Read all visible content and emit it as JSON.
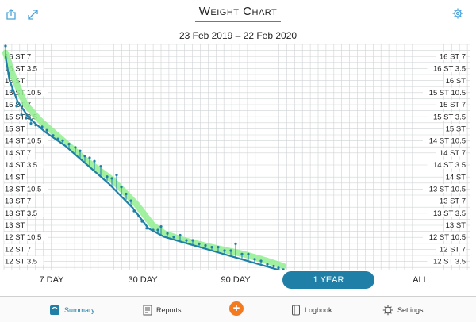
{
  "header": {
    "title": "Weight Chart",
    "date_range": "23 Feb 2019 – 22 Feb 2020",
    "left_icons": [
      "share-icon",
      "expand-icon"
    ],
    "right_icon": "gear-icon",
    "accent_color": "#4aa3d8"
  },
  "chart_data": {
    "type": "line",
    "y_unit": "stones and pounds",
    "y_tick_labels": [
      "16 ST 7",
      "16 ST 3.5",
      "16 ST",
      "15 ST 10.5",
      "15 ST 7",
      "15 ST 3.5",
      "15 ST",
      "14 ST 10.5",
      "14 ST 7",
      "14 ST 3.5",
      "14 ST",
      "13 ST 10.5",
      "13 ST 7",
      "13 ST 3.5",
      "13 ST",
      "12 ST 10.5",
      "12 ST 7",
      "12 ST 3.5"
    ],
    "ylim_lbs": [
      171.5,
      234.5
    ],
    "xlim_days": [
      0,
      365
    ],
    "grid": true,
    "series": [
      {
        "kind": "target-band",
        "color": "#90ee90",
        "x": [
          0,
          10,
          25,
          45,
          70,
          100,
          135,
          165,
          185,
          200,
          225,
          260,
          300,
          330,
          350
        ],
        "y": [
          232,
          225,
          217,
          212,
          207,
          201,
          195,
          188,
          182,
          179.5,
          177.5,
          175.5,
          173.5,
          171.5,
          170
        ]
      },
      {
        "kind": "trend",
        "color": "#1f7fa6",
        "x": [
          0,
          5,
          15,
          30,
          50,
          75,
          100,
          130,
          160,
          180,
          200,
          230,
          260,
          290,
          320,
          350
        ],
        "y": [
          231,
          224,
          218,
          213,
          209,
          205,
          200,
          194,
          187,
          181,
          178.5,
          176.5,
          174.5,
          172.5,
          170.5,
          168.5
        ]
      },
      {
        "kind": "measurements",
        "color": "#1f7fa6",
        "x": [
          0,
          4,
          8,
          14,
          20,
          26,
          32,
          38,
          46,
          52,
          60,
          66,
          72,
          80,
          88,
          94,
          100,
          106,
          112,
          120,
          128,
          134,
          140,
          146,
          152,
          158,
          162,
          168,
          172,
          178,
          186,
          192,
          196,
          204,
          212,
          220,
          228,
          236,
          244,
          252,
          260,
          268,
          276,
          284,
          290,
          298,
          306,
          314,
          322,
          330,
          338,
          344,
          350
        ],
        "y": [
          234,
          226,
          221,
          216.5,
          214,
          213,
          211.5,
          211,
          210.5,
          209.5,
          208,
          207,
          206.5,
          205.5,
          204.5,
          203.5,
          202,
          201.5,
          200.5,
          199,
          196,
          195.5,
          196.5,
          193,
          191,
          189,
          186,
          184.5,
          183,
          181,
          180.5,
          180.5,
          181.5,
          179.5,
          178.5,
          179,
          177.5,
          177.5,
          176.5,
          176,
          175.5,
          175.5,
          174.5,
          174.5,
          176.5,
          173.5,
          173.5,
          172,
          171.5,
          170.5,
          170,
          169.5,
          169
        ]
      }
    ]
  },
  "ranges": {
    "items": [
      "7 DAY",
      "30 DAY",
      "90 DAY",
      "1 YEAR",
      "ALL"
    ],
    "selected": "1 YEAR",
    "active_color": "#1f7fa6"
  },
  "tabbar": {
    "summary": "Summary",
    "reports": "Reports",
    "add": "+",
    "logbook": "Logbook",
    "settings": "Settings",
    "add_color": "#f47a1f"
  }
}
